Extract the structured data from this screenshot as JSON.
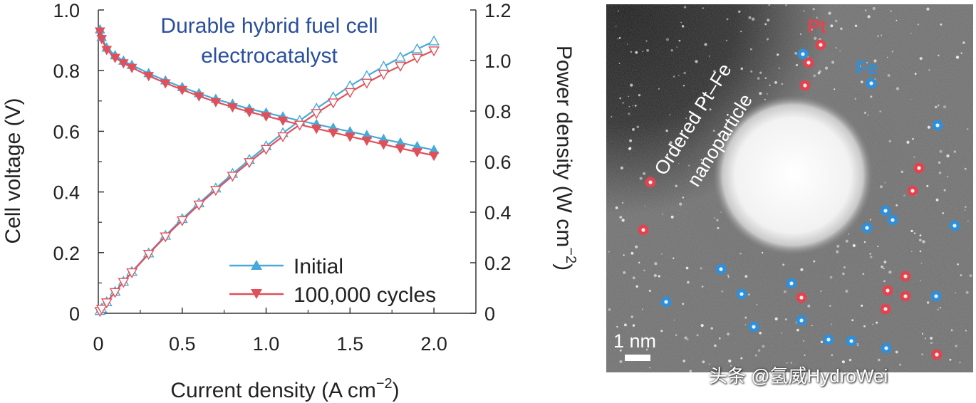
{
  "chart_data": {
    "type": "line",
    "title": "Durable hybrid fuel cell electrocatalyst",
    "title_lines": [
      "Durable hybrid fuel cell",
      "electrocatalyst"
    ],
    "xlabel": "Current density (A cm",
    "xlabel_exp": "−2",
    "xlabel_close": ")",
    "ylabel_left": "Cell voltage (V)",
    "ylabel_right": "Power density (W cm",
    "ylabel_right_exp": "−2",
    "ylabel_right_close": ")",
    "xlim": [
      0,
      2.25
    ],
    "ylim_left": [
      0,
      1.0
    ],
    "ylim_right": [
      0,
      1.2
    ],
    "x_ticks": [
      "0",
      "0.5",
      "1.0",
      "1.5",
      "2.0"
    ],
    "y_left_ticks": [
      "0",
      "0.2",
      "0.4",
      "0.6",
      "0.8",
      "1.0"
    ],
    "y_right_ticks": [
      "0",
      "0.2",
      "0.4",
      "0.6",
      "0.8",
      "1.0",
      "1.2"
    ],
    "x": [
      0.01,
      0.02,
      0.05,
      0.1,
      0.15,
      0.2,
      0.3,
      0.4,
      0.5,
      0.6,
      0.7,
      0.8,
      0.9,
      1.0,
      1.1,
      1.2,
      1.3,
      1.4,
      1.5,
      1.6,
      1.7,
      1.8,
      1.9,
      2.0
    ],
    "series": [
      {
        "name": "Initial",
        "color": "#4aa8d8",
        "marker": "triangle-up",
        "voltage": [
          0.935,
          0.91,
          0.875,
          0.85,
          0.832,
          0.818,
          0.791,
          0.767,
          0.745,
          0.725,
          0.706,
          0.69,
          0.674,
          0.661,
          0.648,
          0.635,
          0.623,
          0.611,
          0.599,
          0.587,
          0.574,
          0.562,
          0.55,
          0.538
        ],
        "power": [
          0.009,
          0.018,
          0.044,
          0.085,
          0.125,
          0.164,
          0.237,
          0.307,
          0.373,
          0.435,
          0.494,
          0.552,
          0.607,
          0.661,
          0.713,
          0.762,
          0.81,
          0.855,
          0.899,
          0.939,
          0.976,
          1.012,
          1.045,
          1.076
        ]
      },
      {
        "name": "100,000 cycles",
        "color": "#e0505a",
        "marker": "triangle-down",
        "voltage": [
          0.93,
          0.905,
          0.869,
          0.843,
          0.825,
          0.81,
          0.783,
          0.759,
          0.737,
          0.716,
          0.697,
          0.68,
          0.664,
          0.65,
          0.636,
          0.622,
          0.609,
          0.596,
          0.583,
          0.57,
          0.557,
          0.544,
          0.532,
          0.52
        ],
        "power": [
          0.009,
          0.018,
          0.043,
          0.084,
          0.124,
          0.162,
          0.235,
          0.304,
          0.368,
          0.43,
          0.488,
          0.544,
          0.598,
          0.65,
          0.7,
          0.746,
          0.792,
          0.834,
          0.875,
          0.912,
          0.947,
          0.979,
          1.011,
          1.04
        ]
      }
    ]
  },
  "micrograph": {
    "particle_label_lines": [
      "Ordered Pt–Fe",
      "nanoparticle"
    ],
    "pt_label": "Pt",
    "fe_label": "Fe",
    "pt_color": "#e0454f",
    "fe_color": "#2f8fd8",
    "scale_bar_label": "1 nm"
  },
  "watermark": "头条 @氢威HydroWei"
}
